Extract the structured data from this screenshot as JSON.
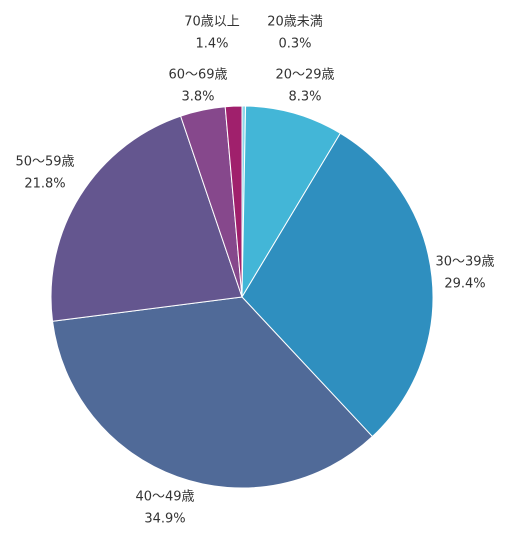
{
  "chart_data": {
    "type": "pie",
    "categories": [
      "20歳未満",
      "20～29歳",
      "30～39歳",
      "40～49歳",
      "50～59歳",
      "60～69歳",
      "70歳以上"
    ],
    "values": [
      0.3,
      8.3,
      29.4,
      34.9,
      21.8,
      3.8,
      1.4
    ],
    "value_labels": [
      "0.3%",
      "8.3%",
      "29.4%",
      "34.9%",
      "21.8%",
      "3.8%",
      "1.4%"
    ],
    "colors": [
      "#8fd8ea",
      "#43b6d7",
      "#2f8fbf",
      "#506a98",
      "#64568f",
      "#86488c",
      "#a0206c"
    ]
  }
}
